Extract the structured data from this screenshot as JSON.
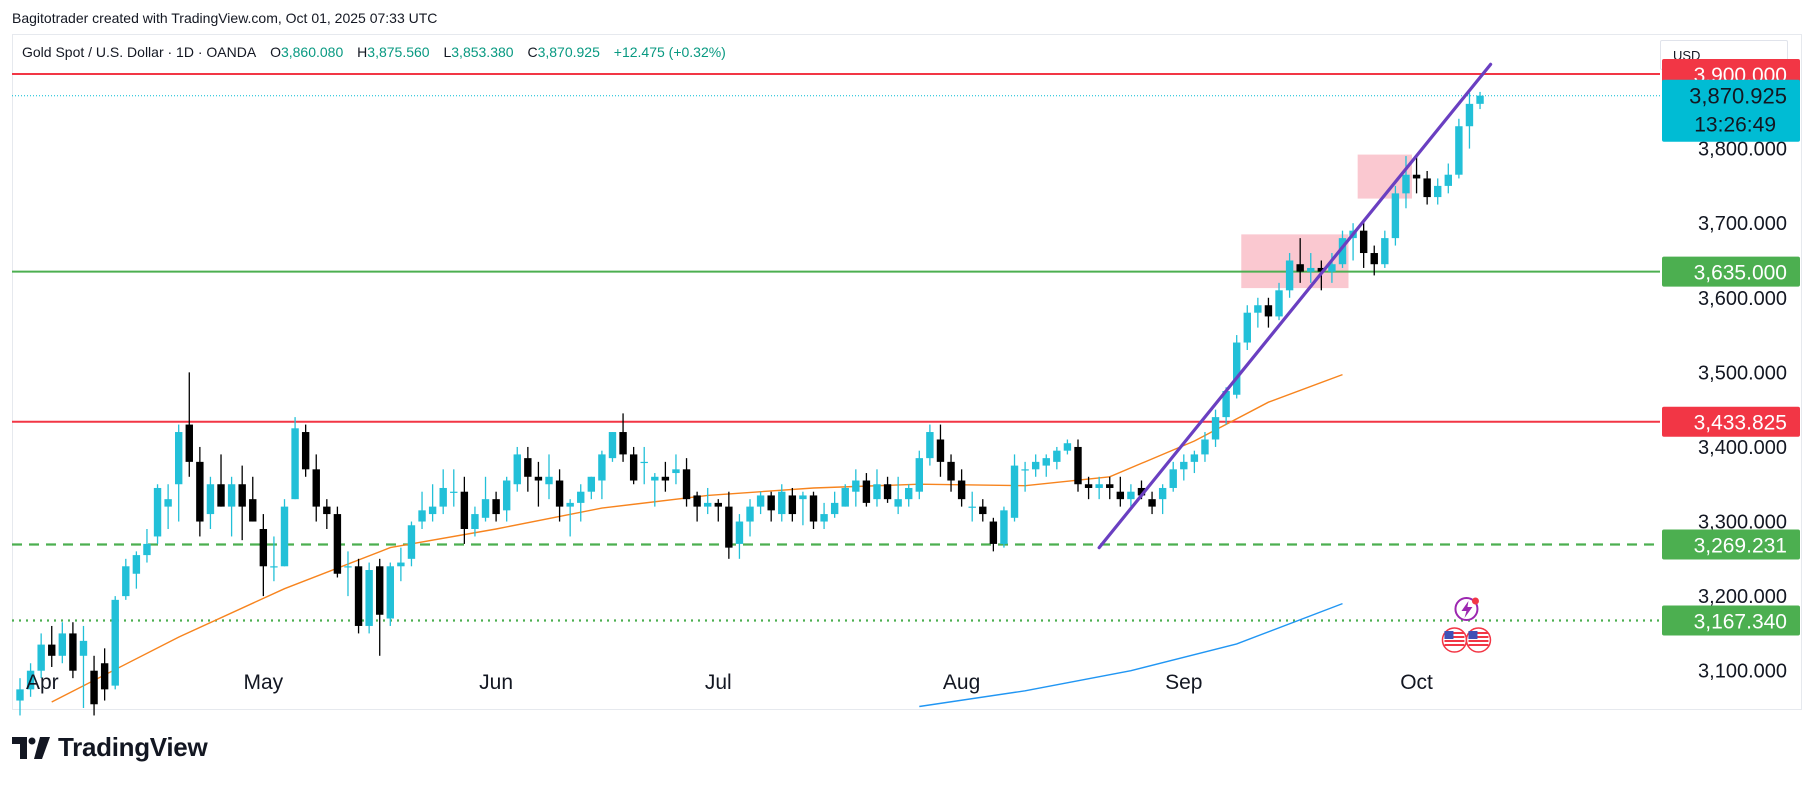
{
  "header": {
    "publisher_line": "Bagitotrader created with TradingView.com, Oct 01, 2025 07:33 UTC"
  },
  "legend": {
    "symbol": "Gold Spot / U.S. Dollar · 1D · OANDA",
    "o_label": "O",
    "o_value": "3,860.080",
    "h_label": "H",
    "h_value": "3,875.560",
    "l_label": "L",
    "l_value": "3,853.380",
    "c_label": "C",
    "c_value": "3,870.925",
    "change": "+12.475 (+0.32%)"
  },
  "currency": "USD",
  "branding": {
    "name": "TradingView"
  },
  "colors": {
    "up": "#22c0d8",
    "down": "#000000",
    "resistance": "#f23645",
    "support": "#4caf50",
    "trendline": "#6a3fc1",
    "ma_fast": "#f7841e",
    "ma_slow": "#2196f3",
    "price_tag": "#00bcd4",
    "consolidation_box": "#f8b6c0"
  },
  "chart_data": {
    "type": "candlestick",
    "y_range": [
      3050,
      3955
    ],
    "y_ticks": [
      "3,100.000",
      "3,200.000",
      "3,300.000",
      "3,400.000",
      "3,500.000",
      "3,600.000",
      "3,700.000",
      "3,800.000"
    ],
    "x_labels": [
      "Apr",
      "May",
      "Jun",
      "Jul",
      "Aug",
      "Sep",
      "Oct"
    ],
    "current_price": "3,870.925",
    "countdown": "13:26:49",
    "horizontal_levels": [
      {
        "value": 3900.0,
        "label": "3,900.000",
        "color": "#f23645",
        "style": "solid"
      },
      {
        "value": 3635.0,
        "label": "3,635.000",
        "color": "#4caf50",
        "style": "solid"
      },
      {
        "value": 3433.825,
        "label": "3,433.825",
        "color": "#f23645",
        "style": "solid"
      },
      {
        "value": 3269.231,
        "label": "3,269.231",
        "color": "#4caf50",
        "style": "dashed"
      },
      {
        "value": 3167.34,
        "label": "3,167.340",
        "color": "#4caf50",
        "style": "dotted"
      }
    ],
    "trendline": {
      "from": {
        "date": "2025-08-20",
        "price": 3265
      },
      "to": {
        "date": "2025-10-10",
        "price": 3913
      }
    },
    "consolidation_boxes": [
      {
        "from": "2025-09-09",
        "to": "2025-09-22",
        "high": 3685,
        "low": 3613
      },
      {
        "from": "2025-09-24",
        "to": "2025-09-30",
        "high": 3792,
        "low": 3733
      }
    ],
    "moving_averages": [
      {
        "color": "#f7841e",
        "points": [
          [
            3,
            3058
          ],
          [
            15,
            3145
          ],
          [
            25,
            3210
          ],
          [
            35,
            3265
          ],
          [
            45,
            3290
          ],
          [
            55,
            3318
          ],
          [
            65,
            3335
          ],
          [
            75,
            3345
          ],
          [
            85,
            3350
          ],
          [
            95,
            3348
          ],
          [
            103,
            3360
          ],
          [
            111,
            3408
          ],
          [
            118,
            3460
          ],
          [
            125,
            3497
          ]
        ]
      },
      {
        "color": "#2196f3",
        "points": [
          [
            85,
            3052
          ],
          [
            95,
            3073
          ],
          [
            105,
            3100
          ],
          [
            115,
            3136
          ],
          [
            125,
            3190
          ]
        ]
      }
    ],
    "candles": [
      [
        3060,
        3090,
        3040,
        3075
      ],
      [
        3075,
        3110,
        3065,
        3100
      ],
      [
        3100,
        3150,
        3090,
        3135
      ],
      [
        3135,
        3160,
        3105,
        3120
      ],
      [
        3120,
        3165,
        3110,
        3150
      ],
      [
        3150,
        3165,
        3090,
        3100
      ],
      [
        3120,
        3160,
        3050,
        3140
      ],
      [
        3100,
        3120,
        3040,
        3055
      ],
      [
        3110,
        3130,
        3060,
        3075
      ],
      [
        3080,
        3200,
        3075,
        3195
      ],
      [
        3200,
        3250,
        3195,
        3240
      ],
      [
        3230,
        3260,
        3210,
        3255
      ],
      [
        3255,
        3290,
        3245,
        3270
      ],
      [
        3280,
        3350,
        3270,
        3345
      ],
      [
        3320,
        3350,
        3290,
        3330
      ],
      [
        3350,
        3430,
        3300,
        3420
      ],
      [
        3430,
        3500,
        3360,
        3380
      ],
      [
        3380,
        3400,
        3280,
        3300
      ],
      [
        3310,
        3360,
        3290,
        3350
      ],
      [
        3350,
        3390,
        3320,
        3320
      ],
      [
        3320,
        3360,
        3280,
        3350
      ],
      [
        3350,
        3375,
        3275,
        3320
      ],
      [
        3330,
        3360,
        3300,
        3300
      ],
      [
        3290,
        3310,
        3200,
        3240
      ],
      [
        3240,
        3280,
        3220,
        3240
      ],
      [
        3240,
        3330,
        3240,
        3320
      ],
      [
        3330,
        3440,
        3330,
        3425
      ],
      [
        3420,
        3430,
        3360,
        3370
      ],
      [
        3370,
        3390,
        3300,
        3320
      ],
      [
        3320,
        3330,
        3290,
        3310
      ],
      [
        3310,
        3320,
        3225,
        3230
      ],
      [
        3240,
        3260,
        3200,
        3240
      ],
      [
        3240,
        3250,
        3150,
        3160
      ],
      [
        3160,
        3245,
        3150,
        3235
      ],
      [
        3240,
        3250,
        3120,
        3175
      ],
      [
        3170,
        3245,
        3160,
        3240
      ],
      [
        3240,
        3265,
        3220,
        3245
      ],
      [
        3250,
        3300,
        3240,
        3295
      ],
      [
        3300,
        3340,
        3290,
        3315
      ],
      [
        3310,
        3350,
        3300,
        3320
      ],
      [
        3320,
        3370,
        3310,
        3345
      ],
      [
        3340,
        3370,
        3320,
        3340
      ],
      [
        3340,
        3360,
        3270,
        3290
      ],
      [
        3290,
        3320,
        3280,
        3310
      ],
      [
        3305,
        3360,
        3300,
        3330
      ],
      [
        3330,
        3340,
        3300,
        3310
      ],
      [
        3315,
        3360,
        3300,
        3355
      ],
      [
        3350,
        3400,
        3340,
        3390
      ],
      [
        3385,
        3400,
        3340,
        3360
      ],
      [
        3360,
        3380,
        3320,
        3355
      ],
      [
        3350,
        3390,
        3330,
        3360
      ],
      [
        3355,
        3370,
        3300,
        3320
      ],
      [
        3320,
        3330,
        3280,
        3325
      ],
      [
        3325,
        3350,
        3300,
        3340
      ],
      [
        3340,
        3360,
        3330,
        3360
      ],
      [
        3355,
        3395,
        3330,
        3390
      ],
      [
        3385,
        3420,
        3380,
        3420
      ],
      [
        3420,
        3445,
        3380,
        3390
      ],
      [
        3390,
        3400,
        3350,
        3355
      ],
      [
        3380,
        3400,
        3350,
        3380
      ],
      [
        3355,
        3365,
        3320,
        3360
      ],
      [
        3360,
        3380,
        3340,
        3355
      ],
      [
        3365,
        3390,
        3350,
        3370
      ],
      [
        3370,
        3385,
        3320,
        3330
      ],
      [
        3335,
        3340,
        3300,
        3320
      ],
      [
        3320,
        3345,
        3310,
        3325
      ],
      [
        3325,
        3330,
        3300,
        3320
      ],
      [
        3320,
        3340,
        3250,
        3265
      ],
      [
        3270,
        3310,
        3250,
        3300
      ],
      [
        3300,
        3330,
        3280,
        3320
      ],
      [
        3320,
        3340,
        3310,
        3335
      ],
      [
        3335,
        3340,
        3300,
        3315
      ],
      [
        3310,
        3350,
        3300,
        3340
      ],
      [
        3335,
        3345,
        3300,
        3310
      ],
      [
        3330,
        3340,
        3295,
        3335
      ],
      [
        3335,
        3340,
        3290,
        3300
      ],
      [
        3300,
        3325,
        3290,
        3310
      ],
      [
        3310,
        3340,
        3305,
        3325
      ],
      [
        3320,
        3350,
        3320,
        3345
      ],
      [
        3340,
        3370,
        3320,
        3355
      ],
      [
        3355,
        3365,
        3320,
        3325
      ],
      [
        3330,
        3370,
        3320,
        3350
      ],
      [
        3350,
        3360,
        3325,
        3330
      ],
      [
        3320,
        3360,
        3310,
        3330
      ],
      [
        3330,
        3350,
        3320,
        3345
      ],
      [
        3340,
        3395,
        3330,
        3385
      ],
      [
        3385,
        3430,
        3375,
        3420
      ],
      [
        3410,
        3430,
        3360,
        3380
      ],
      [
        3380,
        3390,
        3340,
        3355
      ],
      [
        3355,
        3370,
        3320,
        3330
      ],
      [
        3320,
        3340,
        3300,
        3320
      ],
      [
        3320,
        3330,
        3300,
        3310
      ],
      [
        3300,
        3305,
        3260,
        3270
      ],
      [
        3270,
        3320,
        3265,
        3315
      ],
      [
        3305,
        3390,
        3300,
        3375
      ],
      [
        3370,
        3380,
        3340,
        3370
      ],
      [
        3370,
        3390,
        3360,
        3380
      ],
      [
        3375,
        3390,
        3360,
        3385
      ],
      [
        3380,
        3400,
        3370,
        3395
      ],
      [
        3395,
        3410,
        3390,
        3405
      ],
      [
        3400,
        3410,
        3340,
        3350
      ],
      [
        3350,
        3360,
        3330,
        3345
      ],
      [
        3345,
        3360,
        3330,
        3350
      ],
      [
        3350,
        3360,
        3330,
        3345
      ],
      [
        3340,
        3360,
        3320,
        3330
      ],
      [
        3330,
        3350,
        3320,
        3340
      ],
      [
        3345,
        3355,
        3330,
        3335
      ],
      [
        3330,
        3340,
        3310,
        3320
      ],
      [
        3330,
        3350,
        3310,
        3345
      ],
      [
        3345,
        3380,
        3340,
        3370
      ],
      [
        3370,
        3390,
        3355,
        3380
      ],
      [
        3380,
        3395,
        3365,
        3390
      ],
      [
        3390,
        3420,
        3380,
        3410
      ],
      [
        3410,
        3450,
        3400,
        3440
      ],
      [
        3440,
        3480,
        3430,
        3475
      ],
      [
        3470,
        3550,
        3465,
        3540
      ],
      [
        3540,
        3590,
        3530,
        3580
      ],
      [
        3580,
        3600,
        3560,
        3590
      ],
      [
        3590,
        3600,
        3560,
        3575
      ],
      [
        3575,
        3620,
        3570,
        3610
      ],
      [
        3610,
        3660,
        3600,
        3650
      ],
      [
        3645,
        3680,
        3620,
        3635
      ],
      [
        3635,
        3660,
        3620,
        3640
      ],
      [
        3640,
        3650,
        3610,
        3635
      ],
      [
        3635,
        3660,
        3620,
        3645
      ],
      [
        3645,
        3690,
        3640,
        3680
      ],
      [
        3680,
        3700,
        3650,
        3690
      ],
      [
        3690,
        3705,
        3640,
        3660
      ],
      [
        3660,
        3670,
        3630,
        3645
      ],
      [
        3645,
        3690,
        3640,
        3680
      ],
      [
        3680,
        3750,
        3670,
        3740
      ],
      [
        3740,
        3790,
        3720,
        3765
      ],
      [
        3765,
        3790,
        3740,
        3760
      ],
      [
        3760,
        3770,
        3725,
        3735
      ],
      [
        3735,
        3760,
        3725,
        3750
      ],
      [
        3750,
        3780,
        3740,
        3765
      ],
      [
        3765,
        3840,
        3760,
        3830
      ],
      [
        3830,
        3875,
        3800,
        3860
      ],
      [
        3860,
        3876,
        3853,
        3871
      ]
    ]
  }
}
